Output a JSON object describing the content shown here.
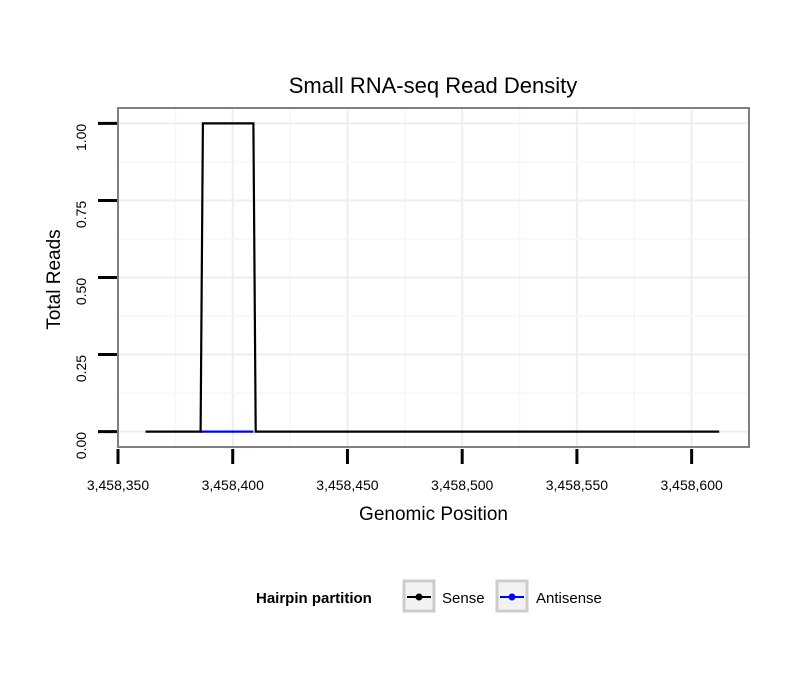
{
  "chart_data": {
    "type": "line",
    "title": "Small RNA-seq Read Density",
    "xlabel": "Genomic Position",
    "ylabel": "Total Reads",
    "xlim": [
      3458350,
      3458625
    ],
    "ylim": [
      -0.05,
      1.05
    ],
    "x_ticks": [
      3458350,
      3458400,
      3458450,
      3458500,
      3458550,
      3458600
    ],
    "x_tick_labels": [
      "3,458,350",
      "3,458,400",
      "3,458,450",
      "3,458,500",
      "3,458,550",
      "3,458,600"
    ],
    "y_ticks": [
      0,
      0.25,
      0.5,
      0.75,
      1.0
    ],
    "y_tick_labels": [
      "0.00",
      "0.25",
      "0.50",
      "0.75",
      "1.00"
    ],
    "grid": true,
    "legend": {
      "title": "Hairpin partition",
      "position": "bottom"
    },
    "series": [
      {
        "name": "Sense",
        "color": "#000000",
        "x": [
          3458362,
          3458386,
          3458387,
          3458409,
          3458410,
          3458612
        ],
        "y": [
          0,
          0,
          1,
          1,
          0,
          0
        ]
      },
      {
        "name": "Antisense",
        "color": "#0000ff",
        "x": [
          3458386,
          3458409
        ],
        "y": [
          0,
          0
        ]
      }
    ]
  }
}
